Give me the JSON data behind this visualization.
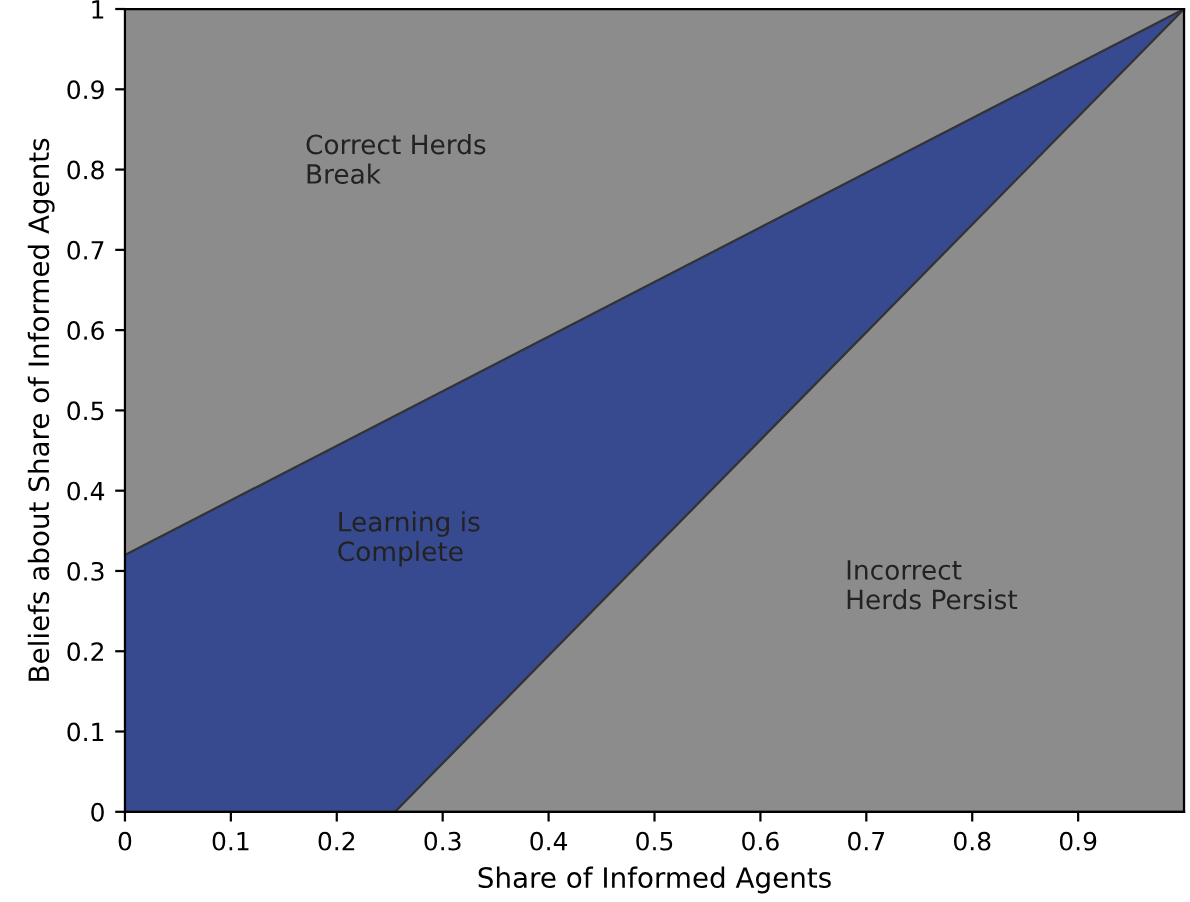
{
  "chart_data": {
    "type": "area",
    "xlabel": "Share of Informed Agents",
    "ylabel": "Beliefs about Share of Informed Agents",
    "series": [
      {
        "color": "#374a8f",
        "x": [
          0,
          1
        ],
        "values": [
          0.32,
          1
        ]
      },
      {
        "color": "#8c8c8c",
        "x": [
          0.255,
          1
        ],
        "values": [
          0,
          1
        ]
      }
    ],
    "xlim": [
      0,
      1
    ],
    "ylim": [
      0,
      1
    ],
    "xticks": [
      0,
      0.1,
      0.2,
      0.3,
      0.4,
      0.5,
      0.6,
      0.7,
      0.8,
      0.9
    ],
    "yticks": [
      0,
      0.1,
      0.2,
      0.3,
      0.4,
      0.5,
      0.6,
      0.7,
      0.8,
      0.9,
      1
    ],
    "grid": false,
    "annotations": [
      "Correct Herds\nBreak",
      "Learning is\nComplete",
      "Incorrect\nHerds Persist"
    ]
  }
}
